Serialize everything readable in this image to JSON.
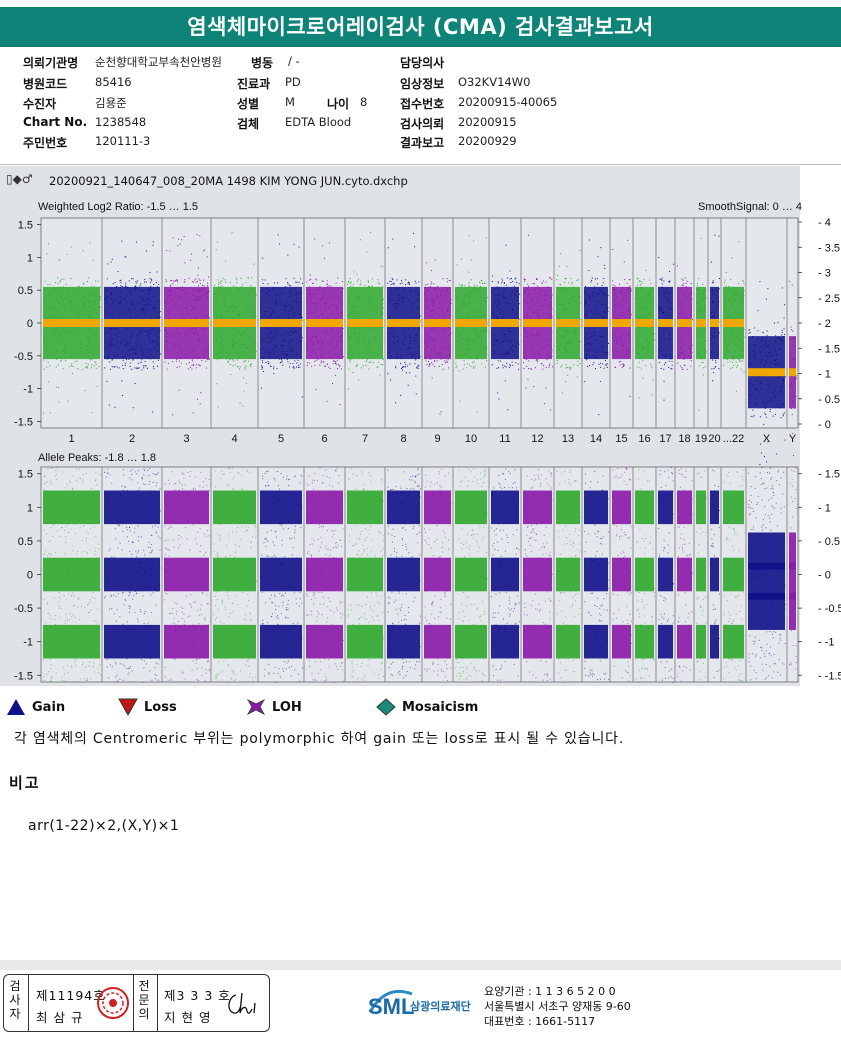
{
  "title": "염색체마이크로어레이검사 (CMA) 검사결과보고서",
  "info": {
    "col1": [
      {
        "key": "의뢰기관명",
        "val": "순천향대학교부속천안병원"
      },
      {
        "key": "병원코드",
        "val": "85416"
      },
      {
        "key": "수진자",
        "val": "김용준"
      },
      {
        "key": "Chart No.",
        "val": "1238548"
      },
      {
        "key": "주민번호",
        "val": "120111-3"
      }
    ],
    "ward": {
      "key": "병동",
      "val": "/ -"
    },
    "dept": {
      "key": "진료과",
      "val": "PD"
    },
    "sex": {
      "key": "성별",
      "val": "M"
    },
    "age": {
      "key": "나이",
      "val": "8"
    },
    "specimen": {
      "key": "검체",
      "val": "EDTA Blood"
    },
    "col3": [
      {
        "key": "담당의사",
        "val": ""
      },
      {
        "key": "임상정보",
        "val": "O32KV14W0"
      },
      {
        "key": "접수번호",
        "val": "20200915-40065"
      },
      {
        "key": "검사의뢰",
        "val": "20200915"
      },
      {
        "key": "결과보고",
        "val": "20200929"
      }
    ]
  },
  "file": {
    "icons": "▯◆♂",
    "name": "20200921_140647_008_20MA 1498 KIM YONG JUN.cyto.dxchp"
  },
  "plot1": {
    "label": "Weighted Log2 Ratio: -1.5 … 1.5",
    "right_label": "SmoothSignal: 0 … 4",
    "yticks": [
      "1.5",
      "1",
      "0.5",
      "0",
      "-0.5",
      "-1",
      "-1.5"
    ],
    "rticks": [
      "4",
      "3.5",
      "3",
      "2.5",
      "2",
      "1.5",
      "1",
      "0.5",
      "0"
    ]
  },
  "plot2": {
    "label": "Allele Peaks: -1.8 … 1.8",
    "yticks": [
      "1.5",
      "1",
      "0.5",
      "0",
      "-0.5",
      "-1",
      "-1.5"
    ],
    "rticks": [
      "1.5",
      "1",
      "0.5",
      "0",
      "-0.5",
      "-1",
      "-1.5"
    ]
  },
  "chromosomes": [
    "1",
    "2",
    "3",
    "4",
    "5",
    "6",
    "7",
    "8",
    "9",
    "10",
    "11",
    "12",
    "13",
    "14",
    "15",
    "16",
    "17",
    "18",
    "19",
    "20",
    "...22",
    "X",
    "Y"
  ],
  "colors": {
    "green": "#2ea82e",
    "blue": "#10108a",
    "purple": "#8a18a8",
    "orange": "#f0a800",
    "teal": "#0e8378"
  },
  "legend": [
    {
      "icon": "gain-triangle",
      "label": "Gain"
    },
    {
      "icon": "loss-triangle",
      "label": "Loss"
    },
    {
      "icon": "loh-x",
      "label": "LOH"
    },
    {
      "icon": "mosaic-diamond",
      "label": "Mosaicism"
    }
  ],
  "note": "각 염색체의 Centromeric 부위는 polymorphic 하여 gain 또는 loss로 표시 될 수 있습니다.",
  "remark_title": "비고",
  "remark": "arr(1-22)×2,(X,Y)×1",
  "sign": {
    "label1": "검사자",
    "num1": "제11194호",
    "name1": "최 삼 규",
    "label2": "전문의",
    "num2": "제3 3 3 호",
    "name2": "지 현 영"
  },
  "org": {
    "logo": "SML",
    "name": "삼광의료재단",
    "code": "요양기관 : 1 1 3 6 5 2 0 0",
    "addr": "서울특별시 서초구 양재동 9-60",
    "phone": "대표번호 : 1661-5117"
  }
}
